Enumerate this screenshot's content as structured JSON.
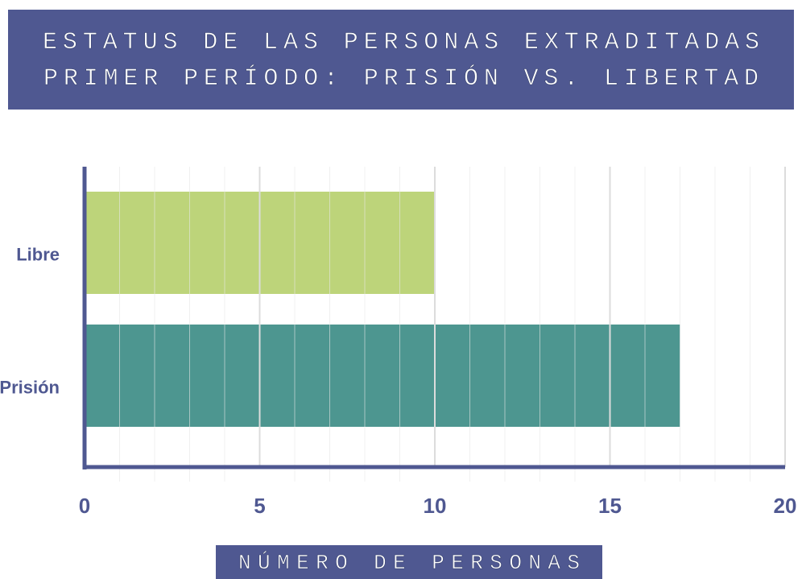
{
  "chart_data": {
    "type": "barh",
    "title": "ESTATUS DE LAS PERSONAS EXTRADITADAS",
    "subtitle": "PRIMER PERÍODO: PRISIÓN VS. LIBERTAD",
    "xlabel": "NÚMERO DE PERSONAS",
    "categories": [
      "Libre",
      "Prisión"
    ],
    "values": [
      10,
      17
    ],
    "colors": [
      "#bdd47a",
      "#4d9690"
    ],
    "xlim": [
      0,
      20
    ],
    "xticks": [
      0,
      5,
      10,
      15,
      20
    ],
    "minor_xticks": [
      1,
      2,
      3,
      4,
      6,
      7,
      8,
      9,
      11,
      12,
      13,
      14,
      16,
      17,
      18,
      19
    ],
    "grid": true
  }
}
